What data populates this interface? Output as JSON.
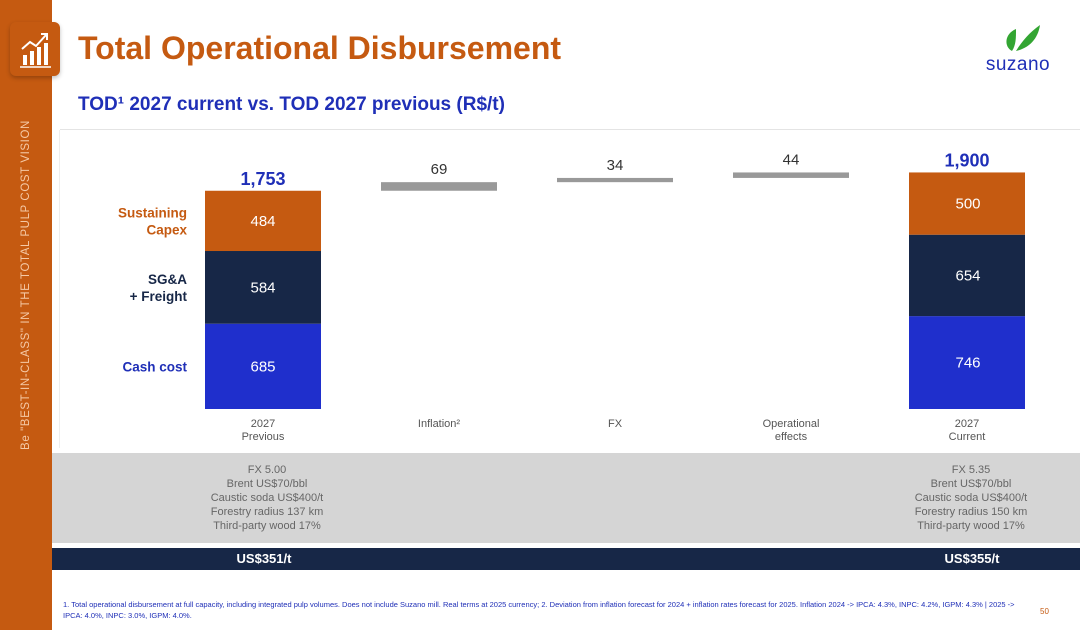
{
  "sidebar_text": "Be \"BEST-IN-CLASS\" IN THE TOTAL PULP COST VISION",
  "header": {
    "title": "Total Operational Disbursement",
    "subtitle": "TOD¹ 2027 current vs. TOD 2027 previous (R$/t)"
  },
  "icons": {
    "header_icon": "chart-growth-icon",
    "brand_icon": "suzano-leaf-icon"
  },
  "brand": {
    "name": "suzano"
  },
  "colors": {
    "accent": "#c55a11",
    "title_blue": "#1f2fb7",
    "cash_cost": "#1f2fcc",
    "sga_freight": "#172747",
    "sustaining_capex": "#c55a11",
    "adjustment": "#999999"
  },
  "chart_data": {
    "type": "bar",
    "subtype": "waterfall",
    "categories": [
      "2027\nPrevious",
      "Inflation²",
      "FX",
      "Operational\neffects",
      "2027\nCurrent"
    ],
    "series": [
      {
        "name": "Cash cost",
        "values": [
          685,
          null,
          null,
          null,
          746
        ]
      },
      {
        "name": "SG&A\n+ Freight",
        "values": [
          584,
          null,
          null,
          null,
          654
        ]
      },
      {
        "name": "Sustaining\nCapex",
        "values": [
          484,
          null,
          null,
          null,
          500
        ]
      }
    ],
    "adjustments": [
      69,
      34,
      44
    ],
    "totals": [
      "1,753",
      "1,900"
    ],
    "adjustment_labels": [
      "69",
      "34",
      "44"
    ],
    "ylim": [
      0,
      1900
    ],
    "grid": false,
    "legend_placement": "left"
  },
  "assumptions": {
    "previous": [
      "FX 5.00",
      "Brent US$70/bbl",
      "Caustic soda US$400/t",
      "Forestry radius 137 km",
      "Third-party wood 17%"
    ],
    "current": [
      "FX 5.35",
      "Brent US$70/bbl",
      "Caustic soda US$400/t",
      "Forestry radius 150 km",
      "Third-party wood 17%"
    ]
  },
  "usd": {
    "previous": "US$351/t",
    "current": "US$355/t"
  },
  "footnote": "1. Total operational disbursement at full capacity, including integrated pulp volumes. Does not include Suzano mill. Real terms at 2025 currency; 2. Deviation from inflation forecast for 2024 + inflation rates forecast for 2025. Inflation 2024 -> IPCA: 4.3%, INPC: 4.2%, IGPM: 4.3% | 2025 -> IPCA: 4.0%, INPC: 3.0%, IGPM: 4.0%.",
  "page_number": "50"
}
